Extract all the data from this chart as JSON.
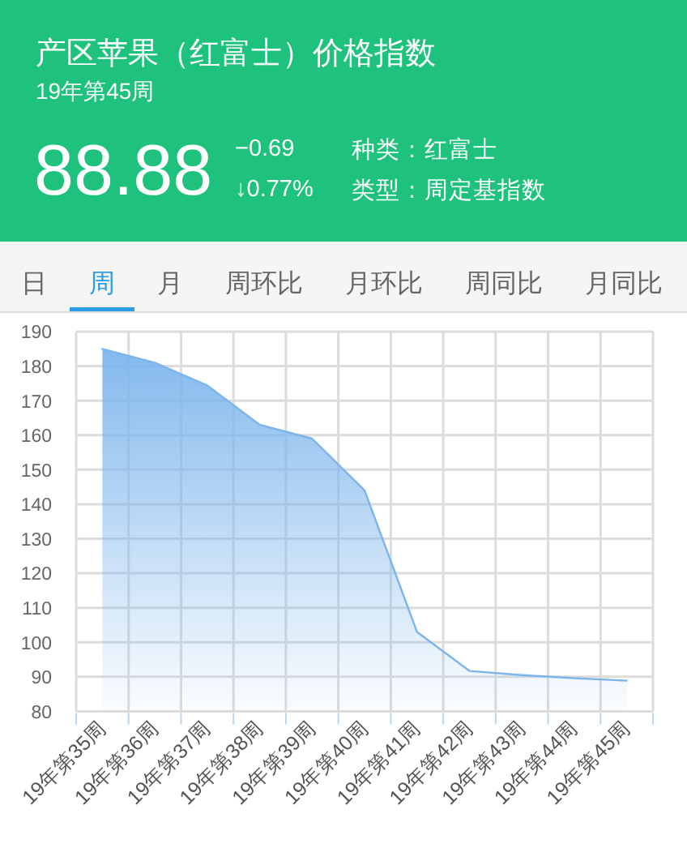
{
  "chart_data": {
    "type": "area",
    "title": "产区苹果（红富士）价格指数",
    "subtitle": "19年第45周",
    "annotations": [
      "88.88",
      "−0.69",
      "↓0.77%",
      "种类：红富士",
      "类型：周定基指数",
      "日",
      "周",
      "月",
      "周环比",
      "月环比",
      "周同比",
      "月同比"
    ],
    "categories": [
      "19年第35周",
      "19年第36周",
      "19年第37周",
      "19年第38周",
      "19年第39周",
      "19年第40周",
      "19年第41周",
      "19年第42周",
      "19年第43周",
      "19年第44周",
      "19年第45周"
    ],
    "values": [
      185,
      181,
      174.4,
      163,
      159,
      144,
      103,
      91.7,
      90.5,
      89.6,
      88.88
    ],
    "color": "#7cb5ec",
    "ylim": [
      80,
      190
    ],
    "yticks": [
      80,
      90,
      100,
      110,
      120,
      130,
      140,
      150,
      160,
      170,
      180,
      190
    ],
    "grid": true
  }
}
